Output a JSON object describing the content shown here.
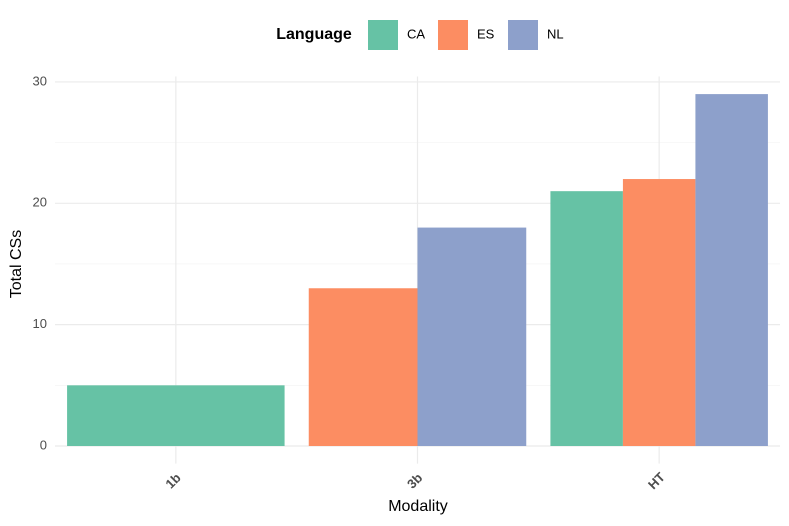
{
  "chart_data": {
    "type": "bar",
    "legend_title": "Language",
    "x_label": "Modality",
    "y_label": "Total CSs",
    "categories": [
      "1b",
      "3b",
      "HT"
    ],
    "series": [
      {
        "name": "CA",
        "color": "#66c2a5",
        "values": [
          5,
          null,
          21
        ]
      },
      {
        "name": "ES",
        "color": "#fc8d62",
        "values": [
          null,
          13,
          22
        ]
      },
      {
        "name": "NL",
        "color": "#8da0cb",
        "values": [
          null,
          18,
          29
        ]
      }
    ],
    "ylim": [
      -1.45,
      30.45
    ],
    "yticks": [
      0,
      10,
      20,
      30
    ],
    "minor_yticks": [
      5,
      15,
      25
    ],
    "grid": true,
    "legend_position": "top"
  }
}
